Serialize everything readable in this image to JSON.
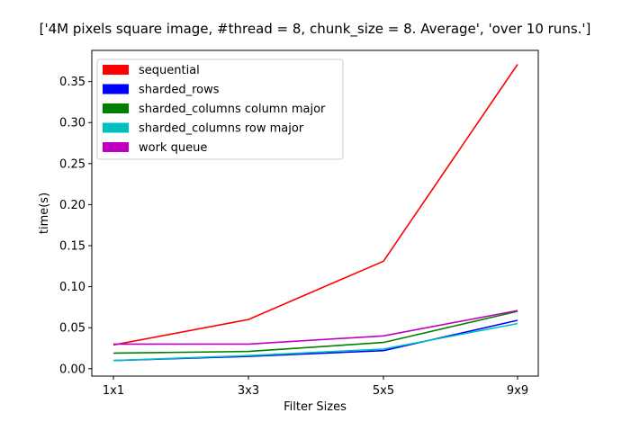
{
  "chart_data": {
    "type": "line",
    "title": "['4M pixels square image, #thread = 8, chunk_size = 8. Average', 'over 10 runs.']",
    "xlabel": "Filter Sizes",
    "ylabel": "time(s)",
    "categories": [
      "1x1",
      "3x3",
      "5x5",
      "9x9"
    ],
    "ylim": [
      -0.009,
      0.388
    ],
    "yticks": [
      0.0,
      0.05,
      0.1,
      0.15,
      0.2,
      0.25,
      0.3,
      0.35
    ],
    "ytick_labels": [
      "0.00",
      "0.05",
      "0.10",
      "0.15",
      "0.20",
      "0.25",
      "0.30",
      "0.35"
    ],
    "grid": false,
    "legend_position": "upper-left",
    "series": [
      {
        "name": "sequential",
        "color": "#ff0000",
        "values": [
          0.029,
          0.06,
          0.131,
          0.371
        ]
      },
      {
        "name": "sharded_rows",
        "color": "#0000ff",
        "values": [
          0.01,
          0.015,
          0.022,
          0.059
        ]
      },
      {
        "name": "sharded_columns column major",
        "color": "#008000",
        "values": [
          0.019,
          0.021,
          0.032,
          0.07
        ]
      },
      {
        "name": "sharded_columns row major",
        "color": "#00bfbf",
        "values": [
          0.01,
          0.016,
          0.024,
          0.055
        ]
      },
      {
        "name": "work queue",
        "color": "#bf00bf",
        "values": [
          0.03,
          0.03,
          0.04,
          0.071
        ]
      }
    ]
  }
}
